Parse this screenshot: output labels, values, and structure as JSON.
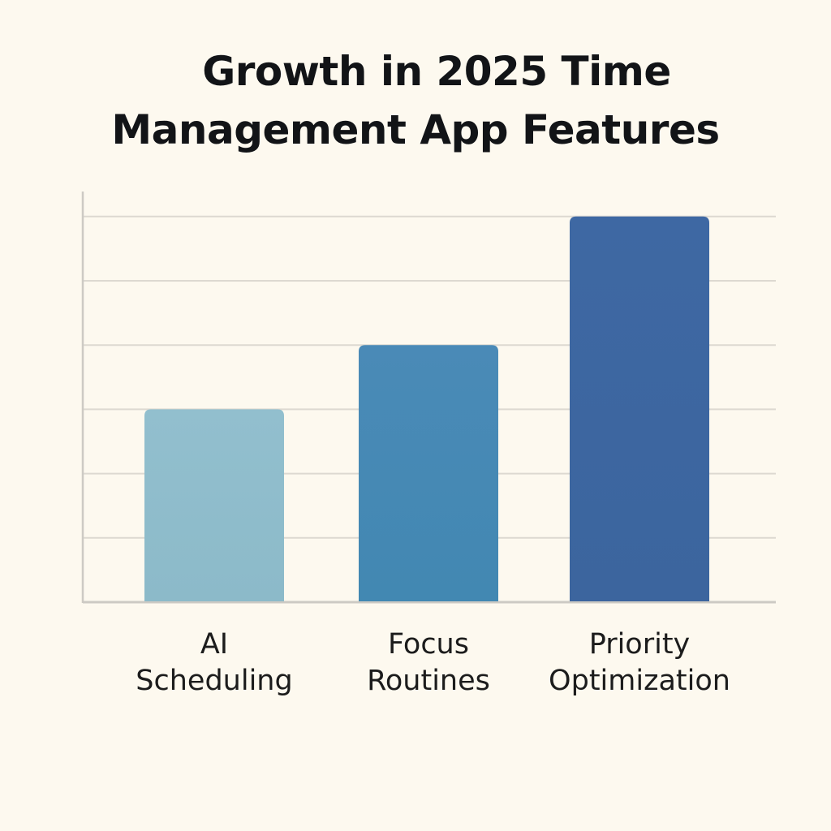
{
  "chart_data": {
    "type": "bar",
    "title_lines": [
      "Growth in 2025 Time",
      "Management App Features"
    ],
    "categories": [
      [
        "AI",
        "Scheduling"
      ],
      [
        "Focus",
        "Routines"
      ],
      [
        "Priority",
        "Optimization"
      ]
    ],
    "values": [
      3,
      4,
      6
    ],
    "ylim": [
      0,
      6.4
    ],
    "gridline_values": [
      1,
      2,
      3,
      4,
      5,
      6
    ],
    "xlabel": "",
    "ylabel": "",
    "grid": true,
    "legend": "none",
    "colors": [
      "#8fbccb",
      "#4689b4",
      "#3d67a1"
    ],
    "grid_color": "#ddd9d1",
    "axis_color": "#cdcac4"
  }
}
